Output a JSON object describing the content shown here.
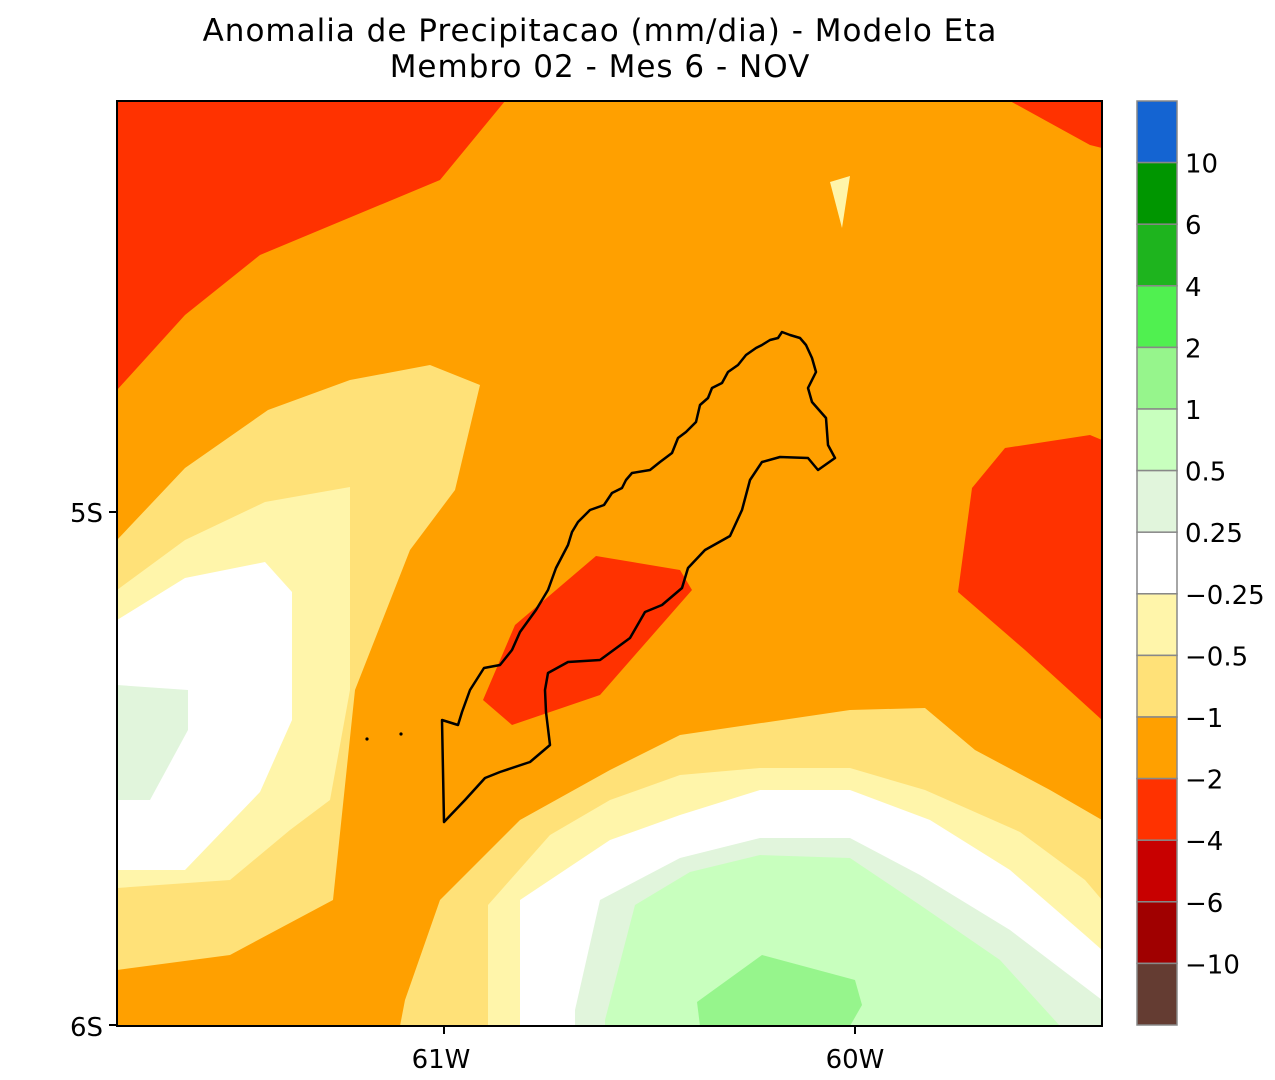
{
  "title": {
    "line1": "Anomalia de Precipitacao (mm/dia) - Modelo Eta",
    "line2": "Membro 02 - Mes 6 - NOV"
  },
  "axes": {
    "y_ticks": [
      "5S",
      "6S"
    ],
    "x_ticks": [
      "61W",
      "60W"
    ]
  },
  "colorbar": {
    "labels": [
      "10",
      "6",
      "4",
      "2",
      "1",
      "0.5",
      "0.25",
      "−0.25",
      "−0.5",
      "−1",
      "−2",
      "−4",
      "−6",
      "−10"
    ],
    "colors": [
      "#1464d2",
      "#009600",
      "#1eb41e",
      "#50f050",
      "#96f58c",
      "#c8ffbe",
      "#e1f5dc",
      "#ffffff",
      "#fff5aa",
      "#ffe178",
      "#ffa000",
      "#ff3200",
      "#c80000",
      "#a00000",
      "#643c32"
    ]
  },
  "colors": {
    "neg_05_025": "#fff5aa",
    "neg_1_05": "#ffe178",
    "neg_2_1": "#ffa000",
    "neg_4_2": "#ff3200",
    "pos_025_05": "#e1f5dc",
    "pos_05_1": "#c8ffbe",
    "pos_1_2": "#96f58c"
  }
}
